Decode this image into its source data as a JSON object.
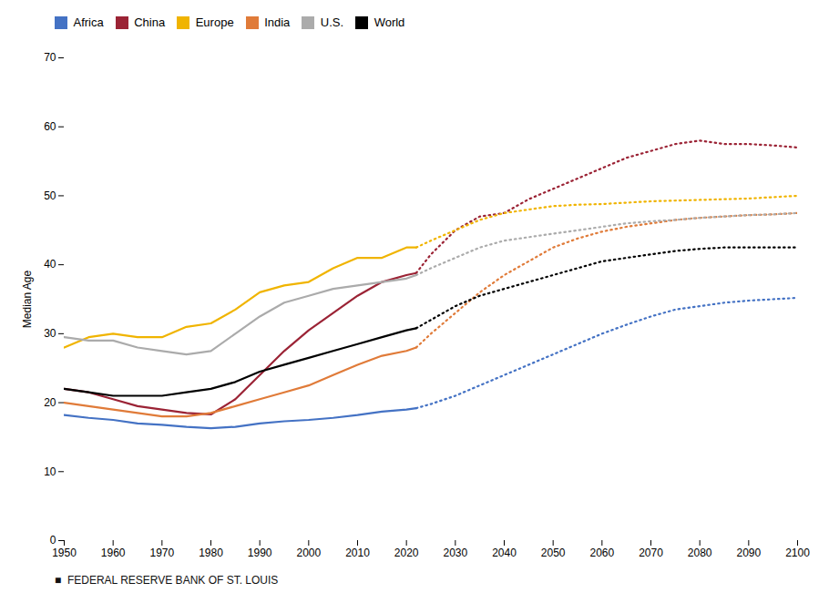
{
  "chart_data": {
    "type": "line",
    "ylabel": "Median Age",
    "annotations": [
      "■  FEDERAL RESERVE BANK OF ST. LOUIS"
    ],
    "xlim": [
      1950,
      2100
    ],
    "ylim": [
      0,
      70
    ],
    "xticks": [
      1950,
      1960,
      1970,
      1980,
      1990,
      2000,
      2010,
      2020,
      2030,
      2040,
      2050,
      2060,
      2070,
      2080,
      2090,
      2100
    ],
    "yticks": [
      0,
      10,
      20,
      30,
      40,
      50,
      60,
      70
    ],
    "grid": false,
    "legend": "upper left",
    "series": [
      {
        "name": "Africa",
        "color": "#4472C4",
        "segments": [
          {
            "line_style": "solid",
            "x": [
              1950,
              1955,
              1960,
              1965,
              1970,
              1975,
              1980,
              1985,
              1990,
              1995,
              2000,
              2005,
              2010,
              2015,
              2020,
              2022
            ],
            "values": [
              18.2,
              17.8,
              17.5,
              17.0,
              16.8,
              16.5,
              16.3,
              16.5,
              17.0,
              17.3,
              17.5,
              17.8,
              18.2,
              18.7,
              19.0,
              19.2
            ]
          },
          {
            "line_style": "dotted",
            "x": [
              2022,
              2025,
              2030,
              2035,
              2040,
              2045,
              2050,
              2055,
              2060,
              2065,
              2070,
              2075,
              2080,
              2085,
              2090,
              2095,
              2100
            ],
            "values": [
              19.2,
              19.8,
              21.0,
              22.5,
              24.0,
              25.5,
              27.0,
              28.5,
              30.0,
              31.3,
              32.5,
              33.5,
              34.0,
              34.5,
              34.8,
              35.0,
              35.2
            ]
          }
        ]
      },
      {
        "name": "China",
        "color": "#9B2335",
        "segments": [
          {
            "line_style": "solid",
            "x": [
              1950,
              1955,
              1960,
              1965,
              1970,
              1975,
              1980,
              1985,
              1990,
              1995,
              2000,
              2005,
              2010,
              2015,
              2020,
              2022
            ],
            "values": [
              22.0,
              21.5,
              20.5,
              19.5,
              19.0,
              18.5,
              18.3,
              20.5,
              24.0,
              27.5,
              30.5,
              33.0,
              35.5,
              37.5,
              38.5,
              38.8
            ]
          },
          {
            "line_style": "dotted",
            "x": [
              2022,
              2025,
              2030,
              2035,
              2040,
              2045,
              2050,
              2055,
              2060,
              2065,
              2070,
              2075,
              2080,
              2085,
              2090,
              2095,
              2100
            ],
            "values": [
              38.8,
              41.5,
              45.0,
              47.0,
              47.5,
              49.5,
              51.0,
              52.5,
              54.0,
              55.5,
              56.5,
              57.5,
              58.0,
              57.5,
              57.5,
              57.3,
              57.0
            ]
          }
        ]
      },
      {
        "name": "Europe",
        "color": "#F0B400",
        "segments": [
          {
            "line_style": "solid",
            "x": [
              1950,
              1955,
              1960,
              1965,
              1970,
              1975,
              1980,
              1985,
              1990,
              1995,
              2000,
              2005,
              2010,
              2015,
              2020,
              2022
            ],
            "values": [
              28.0,
              29.5,
              30.0,
              29.5,
              29.5,
              31.0,
              31.5,
              33.5,
              36.0,
              37.0,
              37.5,
              39.5,
              41.0,
              41.0,
              42.5,
              42.5
            ]
          },
          {
            "line_style": "dotted",
            "x": [
              2022,
              2025,
              2030,
              2035,
              2040,
              2045,
              2050,
              2055,
              2060,
              2065,
              2070,
              2075,
              2080,
              2085,
              2090,
              2095,
              2100
            ],
            "values": [
              42.5,
              43.5,
              45.0,
              46.5,
              47.5,
              48.0,
              48.5,
              48.7,
              48.8,
              49.0,
              49.2,
              49.3,
              49.4,
              49.5,
              49.6,
              49.8,
              50.0
            ]
          }
        ]
      },
      {
        "name": "India",
        "color": "#E07B39",
        "segments": [
          {
            "line_style": "solid",
            "x": [
              1950,
              1955,
              1960,
              1965,
              1970,
              1975,
              1980,
              1985,
              1990,
              1995,
              2000,
              2005,
              2010,
              2015,
              2020,
              2022
            ],
            "values": [
              20.0,
              19.5,
              19.0,
              18.5,
              18.0,
              18.0,
              18.5,
              19.5,
              20.5,
              21.5,
              22.5,
              24.0,
              25.5,
              26.8,
              27.5,
              28.0
            ]
          },
          {
            "line_style": "dotted",
            "x": [
              2022,
              2025,
              2030,
              2035,
              2040,
              2045,
              2050,
              2055,
              2060,
              2065,
              2070,
              2075,
              2080,
              2085,
              2090,
              2095,
              2100
            ],
            "values": [
              28.0,
              30.0,
              33.0,
              36.0,
              38.5,
              40.5,
              42.5,
              43.8,
              44.8,
              45.5,
              46.0,
              46.5,
              46.8,
              47.0,
              47.2,
              47.3,
              47.5
            ]
          }
        ]
      },
      {
        "name": "U.S.",
        "color": "#ABABAB",
        "segments": [
          {
            "line_style": "solid",
            "x": [
              1950,
              1955,
              1960,
              1965,
              1970,
              1975,
              1980,
              1985,
              1990,
              1995,
              2000,
              2005,
              2010,
              2015,
              2020,
              2022
            ],
            "values": [
              29.5,
              29.0,
              29.0,
              28.0,
              27.5,
              27.0,
              27.5,
              30.0,
              32.5,
              34.5,
              35.5,
              36.5,
              37.0,
              37.5,
              38.0,
              38.5
            ]
          },
          {
            "line_style": "dotted",
            "x": [
              2022,
              2025,
              2030,
              2035,
              2040,
              2045,
              2050,
              2055,
              2060,
              2065,
              2070,
              2075,
              2080,
              2085,
              2090,
              2095,
              2100
            ],
            "values": [
              38.5,
              39.5,
              41.0,
              42.5,
              43.5,
              44.0,
              44.5,
              45.0,
              45.5,
              46.0,
              46.3,
              46.5,
              46.8,
              47.0,
              47.2,
              47.3,
              47.5
            ]
          }
        ]
      },
      {
        "name": "World",
        "color": "#000000",
        "segments": [
          {
            "line_style": "solid",
            "x": [
              1950,
              1955,
              1960,
              1965,
              1970,
              1975,
              1980,
              1985,
              1990,
              1995,
              2000,
              2005,
              2010,
              2015,
              2020,
              2022
            ],
            "values": [
              22.0,
              21.5,
              21.0,
              21.0,
              21.0,
              21.5,
              22.0,
              23.0,
              24.5,
              25.5,
              26.5,
              27.5,
              28.5,
              29.5,
              30.5,
              30.8
            ]
          },
          {
            "line_style": "dotted",
            "x": [
              2022,
              2025,
              2030,
              2035,
              2040,
              2045,
              2050,
              2055,
              2060,
              2065,
              2070,
              2075,
              2080,
              2085,
              2090,
              2095,
              2100
            ],
            "values": [
              30.8,
              32.0,
              34.0,
              35.5,
              36.5,
              37.5,
              38.5,
              39.5,
              40.5,
              41.0,
              41.5,
              42.0,
              42.3,
              42.5,
              42.5,
              42.5,
              42.5
            ]
          }
        ]
      }
    ]
  }
}
